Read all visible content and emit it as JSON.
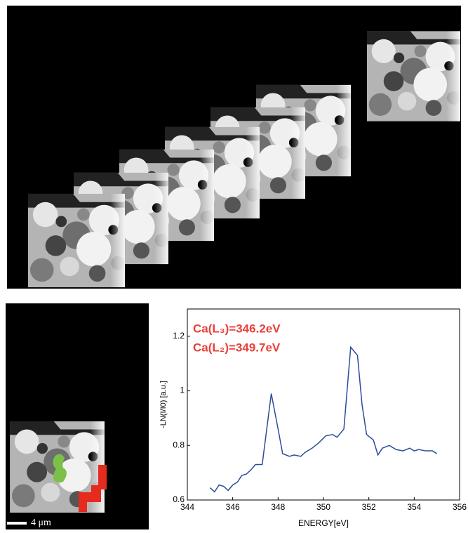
{
  "scale_bar": "4 μm",
  "chart_data": {
    "type": "line",
    "annotations": [
      "Ca(L₃)=346.2eV",
      "Ca(L₂)=349.7eV"
    ],
    "annotation_color": "#e8413a",
    "x_label": "ENERGY[eV]",
    "y_label": "-LN(I/I0) [a.u.]",
    "x": [
      345.0,
      345.2,
      345.4,
      345.6,
      345.8,
      346.0,
      346.2,
      346.4,
      346.6,
      346.8,
      347.0,
      347.3,
      347.7,
      348.0,
      348.2,
      348.5,
      348.7,
      349.0,
      349.2,
      349.5,
      349.8,
      350.1,
      350.4,
      350.6,
      350.9,
      351.2,
      351.5,
      351.7,
      351.9,
      352.2,
      352.4,
      352.6,
      352.9,
      353.2,
      353.5,
      353.8,
      354.0,
      354.2,
      354.5,
      354.8,
      355.0
    ],
    "series": [
      {
        "color": "#2b4c9b",
        "values": [
          0.645,
          0.63,
          0.655,
          0.65,
          0.635,
          0.655,
          0.665,
          0.69,
          0.695,
          0.71,
          0.73,
          0.73,
          0.99,
          0.86,
          0.77,
          0.76,
          0.765,
          0.76,
          0.775,
          0.79,
          0.81,
          0.835,
          0.84,
          0.83,
          0.86,
          1.16,
          1.13,
          0.95,
          0.84,
          0.82,
          0.765,
          0.79,
          0.8,
          0.785,
          0.78,
          0.79,
          0.78,
          0.785,
          0.78,
          0.78,
          0.77
        ]
      }
    ],
    "xlim": [
      344,
      356
    ],
    "xticks": [
      344,
      346,
      348,
      350,
      352,
      354,
      356
    ],
    "ylim": [
      0.6,
      1.3
    ],
    "yticks": [
      0.6,
      0.8,
      1,
      1.2
    ]
  }
}
